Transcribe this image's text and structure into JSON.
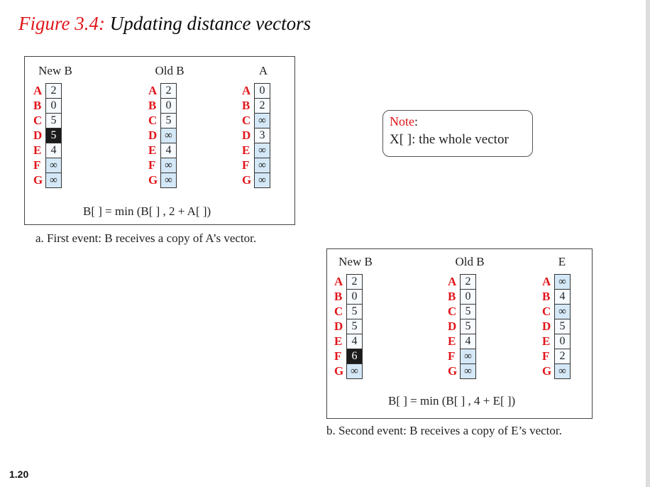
{
  "slide": {
    "figure_label": "Figure 3.4:",
    "title": "Updating distance vectors",
    "slide_number": "1.20"
  },
  "note": {
    "title": "Note",
    "title_suffix": ":",
    "text": "X[ ]: the whole vector"
  },
  "panel_a": {
    "formula": "B[ ] = min (B[ ] , 2 + A[ ])",
    "caption": "a. First event: B receives a copy of A’s vector.",
    "vectors": [
      {
        "heading": "New B",
        "rows": [
          {
            "node": "A",
            "value": "2"
          },
          {
            "node": "B",
            "value": "0"
          },
          {
            "node": "C",
            "value": "5"
          },
          {
            "node": "D",
            "value": "5",
            "highlight": true
          },
          {
            "node": "E",
            "value": "4"
          },
          {
            "node": "F",
            "value": "∞"
          },
          {
            "node": "G",
            "value": "∞"
          }
        ]
      },
      {
        "heading": "Old B",
        "rows": [
          {
            "node": "A",
            "value": "2"
          },
          {
            "node": "B",
            "value": "0"
          },
          {
            "node": "C",
            "value": "5"
          },
          {
            "node": "D",
            "value": "∞"
          },
          {
            "node": "E",
            "value": "4"
          },
          {
            "node": "F",
            "value": "∞"
          },
          {
            "node": "G",
            "value": "∞"
          }
        ]
      },
      {
        "heading": "A",
        "rows": [
          {
            "node": "A",
            "value": "0"
          },
          {
            "node": "B",
            "value": "2"
          },
          {
            "node": "C",
            "value": "∞"
          },
          {
            "node": "D",
            "value": "3"
          },
          {
            "node": "E",
            "value": "∞"
          },
          {
            "node": "F",
            "value": "∞"
          },
          {
            "node": "G",
            "value": "∞"
          }
        ]
      }
    ]
  },
  "panel_b": {
    "formula": "B[ ] = min (B[ ] , 4 + E[ ])",
    "caption": "b. Second event: B receives a copy of E’s vector.",
    "vectors": [
      {
        "heading": "New B",
        "rows": [
          {
            "node": "A",
            "value": "2"
          },
          {
            "node": "B",
            "value": "0"
          },
          {
            "node": "C",
            "value": "5"
          },
          {
            "node": "D",
            "value": "5"
          },
          {
            "node": "E",
            "value": "4"
          },
          {
            "node": "F",
            "value": "6",
            "highlight": true
          },
          {
            "node": "G",
            "value": "∞"
          }
        ]
      },
      {
        "heading": "Old B",
        "rows": [
          {
            "node": "A",
            "value": "2"
          },
          {
            "node": "B",
            "value": "0"
          },
          {
            "node": "C",
            "value": "5"
          },
          {
            "node": "D",
            "value": "5"
          },
          {
            "node": "E",
            "value": "4"
          },
          {
            "node": "F",
            "value": "∞"
          },
          {
            "node": "G",
            "value": "∞"
          }
        ]
      },
      {
        "heading": "E",
        "rows": [
          {
            "node": "A",
            "value": "∞"
          },
          {
            "node": "B",
            "value": "4"
          },
          {
            "node": "C",
            "value": "∞"
          },
          {
            "node": "D",
            "value": "5"
          },
          {
            "node": "E",
            "value": "0"
          },
          {
            "node": "F",
            "value": "2"
          },
          {
            "node": "G",
            "value": "∞"
          }
        ]
      }
    ]
  }
}
